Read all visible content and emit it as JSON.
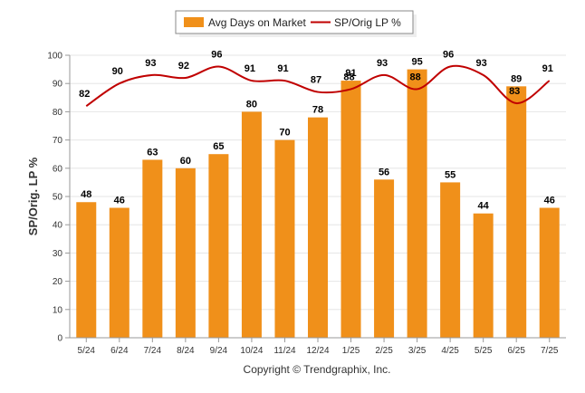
{
  "chart_data": {
    "type": "bar",
    "categories": [
      "5/24",
      "6/24",
      "7/24",
      "8/24",
      "9/24",
      "10/24",
      "11/24",
      "12/24",
      "1/25",
      "2/25",
      "3/25",
      "4/25",
      "5/25",
      "6/25",
      "7/25"
    ],
    "series": [
      {
        "name": "Avg Days on Market",
        "type": "bar",
        "color": "#F0901A",
        "values": [
          48,
          46,
          63,
          60,
          65,
          80,
          70,
          78,
          91,
          56,
          95,
          55,
          44,
          89,
          46
        ]
      },
      {
        "name": "SP/Orig LP %",
        "type": "line",
        "color": "#C00000",
        "values": [
          82,
          90,
          93,
          92,
          96,
          91,
          91,
          87,
          88,
          93,
          88,
          96,
          93,
          83,
          91
        ]
      }
    ],
    "ylabel": "SP/Orig. LP %",
    "xlabel": "",
    "ylim": [
      0,
      100
    ],
    "yticks": [
      0,
      10,
      20,
      30,
      40,
      50,
      60,
      70,
      80,
      90,
      100
    ],
    "grid": true,
    "legend": "top-center",
    "footer": "Copyright © Trendgraphix, Inc."
  }
}
